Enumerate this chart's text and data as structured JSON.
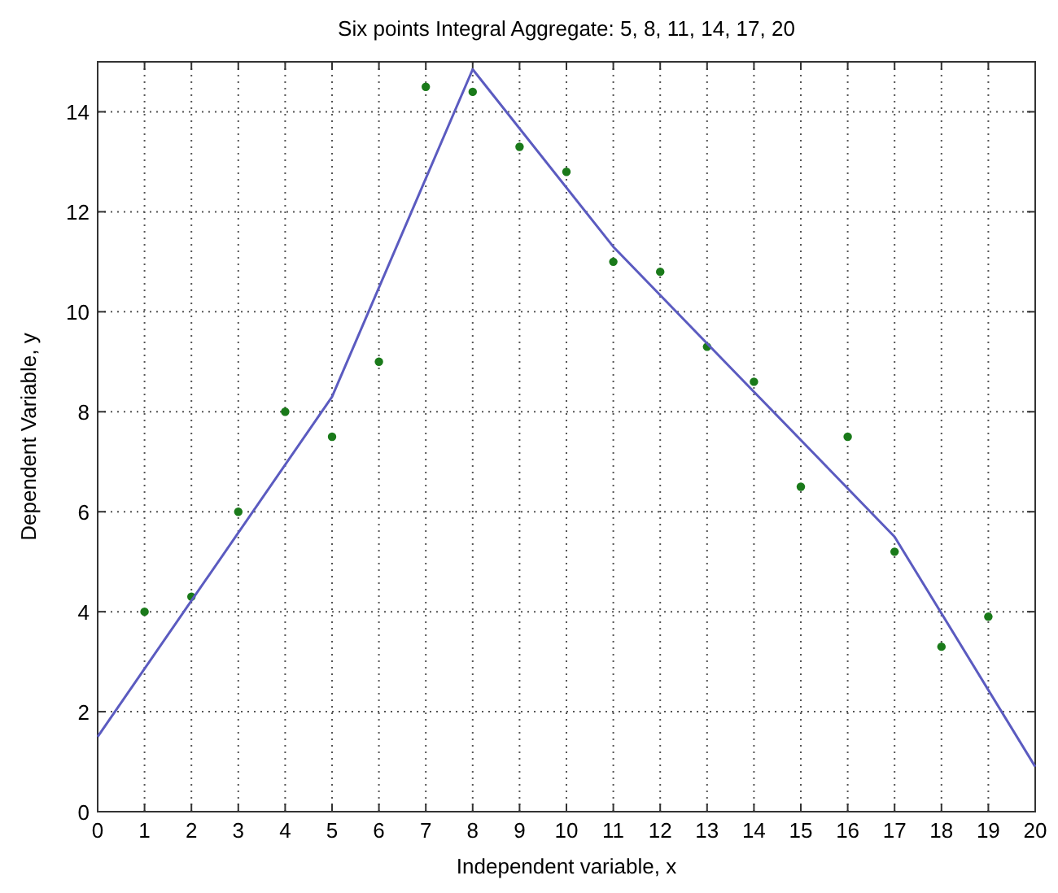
{
  "chart_data": {
    "type": "scatter",
    "title": "Six points Integral Aggregate: 5, 8, 11, 14, 17, 20",
    "xlabel": "Independent variable, x",
    "ylabel": "Dependent Variable, y",
    "xlim": [
      0,
      20
    ],
    "xticks": [
      0,
      1,
      2,
      3,
      4,
      5,
      6,
      7,
      8,
      9,
      10,
      11,
      12,
      13,
      14,
      15,
      16,
      17,
      18,
      19,
      20
    ],
    "ylim": [
      0,
      15
    ],
    "yticks": [
      0,
      2,
      4,
      6,
      8,
      10,
      12,
      14
    ],
    "grid": true,
    "series": [
      {
        "color": "#1a7a1a",
        "marker": "circle",
        "x": [
          1,
          2,
          3,
          4,
          5,
          6,
          7,
          8,
          9,
          10,
          11,
          12,
          13,
          14,
          15,
          16,
          17,
          18,
          19
        ],
        "values": [
          4.0,
          4.3,
          6.0,
          8.0,
          7.5,
          9.0,
          14.5,
          14.4,
          13.3,
          12.8,
          11.0,
          10.8,
          9.3,
          8.6,
          6.5,
          7.5,
          5.2,
          3.3,
          3.9
        ]
      },
      {
        "type": "line",
        "color": "#5b5bc0",
        "line_style": "solid",
        "x": [
          0,
          5,
          8,
          11,
          14,
          17,
          20
        ],
        "values": [
          1.5,
          8.3,
          14.85,
          11.3,
          8.4,
          5.5,
          0.9
        ]
      }
    ]
  }
}
